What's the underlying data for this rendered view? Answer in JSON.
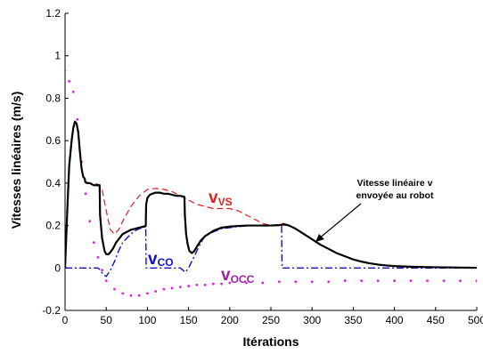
{
  "chart_data": {
    "type": "line",
    "xlabel": "Itérations",
    "ylabel": "Vitesses linéaires (m/s)",
    "xlim": [
      0,
      500
    ],
    "ylim": [
      -0.2,
      1.2
    ],
    "x_ticks": [
      0,
      50,
      100,
      150,
      200,
      250,
      300,
      350,
      400,
      450,
      500
    ],
    "y_ticks": [
      -0.2,
      0,
      0.2,
      0.4,
      0.6,
      0.8,
      1,
      1.2
    ],
    "x_tick_labels": [
      "0",
      "50",
      "100",
      "150",
      "200",
      "250",
      "300",
      "350",
      "400",
      "450",
      "500"
    ],
    "y_tick_labels": [
      "-0.2",
      "0",
      "0.2",
      "0.4",
      "0.6",
      "0.8",
      "1",
      "1.2"
    ],
    "grid": false,
    "colors": {
      "v": "#000000",
      "vvs": "#e0201c",
      "vco": "#1010c8",
      "vocc": "#e020e0"
    },
    "series": [
      {
        "key": "v",
        "style": "solid",
        "x": [
          0,
          3,
          5,
          8,
          10,
          12,
          14,
          16,
          18,
          20,
          22,
          24,
          24.5,
          27,
          30,
          35,
          40,
          42,
          42.5,
          45,
          48,
          50,
          53,
          55,
          58,
          62,
          66,
          70,
          75,
          80,
          85,
          90,
          95,
          98,
          98.5,
          100,
          103,
          106,
          110,
          115,
          120,
          125,
          130,
          135,
          140,
          145,
          145.5,
          147,
          149,
          151,
          154,
          157,
          160,
          165,
          170,
          180,
          190,
          200,
          210,
          220,
          230,
          240,
          250,
          260,
          266,
          272,
          280,
          290,
          300,
          310,
          320,
          330,
          340,
          350,
          360,
          370,
          380,
          390,
          400,
          420,
          440,
          460,
          480,
          500
        ],
        "y": [
          0,
          0.3,
          0.48,
          0.6,
          0.66,
          0.69,
          0.68,
          0.64,
          0.55,
          0.47,
          0.43,
          0.42,
          0.405,
          0.4,
          0.4,
          0.39,
          0.39,
          0.39,
          0.25,
          0.14,
          0.08,
          0.065,
          0.065,
          0.075,
          0.09,
          0.12,
          0.14,
          0.16,
          0.17,
          0.18,
          0.185,
          0.19,
          0.195,
          0.198,
          0.3,
          0.33,
          0.345,
          0.35,
          0.355,
          0.355,
          0.35,
          0.35,
          0.345,
          0.34,
          0.34,
          0.335,
          0.25,
          0.16,
          0.11,
          0.08,
          0.07,
          0.08,
          0.1,
          0.13,
          0.15,
          0.175,
          0.19,
          0.195,
          0.198,
          0.2,
          0.2,
          0.2,
          0.2,
          0.202,
          0.205,
          0.2,
          0.185,
          0.16,
          0.135,
          0.11,
          0.09,
          0.07,
          0.055,
          0.04,
          0.03,
          0.022,
          0.016,
          0.012,
          0.009,
          0.006,
          0.004,
          0.003,
          0.002,
          0.001
        ]
      },
      {
        "key": "vvs",
        "style": "dashed",
        "x": [
          25,
          30,
          40,
          45,
          50,
          55,
          60,
          65,
          70,
          80,
          90,
          100,
          110,
          120,
          130,
          140,
          150,
          160,
          170,
          180,
          190,
          200,
          210,
          220,
          230,
          240,
          250,
          260,
          265,
          270
        ],
        "y": [
          0.4,
          0.4,
          0.395,
          0.37,
          0.27,
          0.18,
          0.16,
          0.18,
          0.22,
          0.29,
          0.34,
          0.37,
          0.375,
          0.37,
          0.36,
          0.34,
          0.32,
          0.3,
          0.29,
          0.28,
          0.28,
          0.28,
          0.27,
          0.25,
          0.23,
          0.21,
          0.2,
          0.205,
          0.21,
          0.205
        ]
      },
      {
        "key": "vco",
        "style": "dashdot",
        "x": [
          0,
          40,
          43,
          46,
          50,
          55,
          60,
          65,
          70,
          75,
          80,
          85,
          90,
          95,
          98,
          98.5,
          100,
          140,
          143,
          146,
          150,
          155,
          160,
          165,
          170,
          180,
          190,
          200,
          210,
          220,
          230,
          240,
          250,
          260,
          263,
          263.5,
          265,
          300,
          350,
          400,
          450,
          500
        ],
        "y": [
          0,
          0,
          -0.01,
          -0.03,
          -0.04,
          -0.01,
          0.03,
          0.08,
          0.12,
          0.14,
          0.16,
          0.175,
          0.185,
          0.19,
          0.195,
          0,
          0,
          0,
          -0.01,
          -0.02,
          0,
          0.04,
          0.08,
          0.12,
          0.15,
          0.17,
          0.185,
          0.19,
          0.195,
          0.198,
          0.2,
          0.2,
          0.2,
          0.2,
          0.2,
          0,
          0,
          0,
          0,
          0,
          0,
          0
        ]
      },
      {
        "key": "vocc",
        "style": "dotted",
        "x": [
          0,
          5,
          10,
          15,
          20,
          25,
          30,
          35,
          40,
          45,
          50,
          60,
          70,
          80,
          90,
          100,
          110,
          120,
          130,
          140,
          150,
          160,
          170,
          180,
          190,
          200,
          220,
          240,
          260,
          280,
          300,
          320,
          340,
          360,
          380,
          400,
          420,
          440,
          460,
          480,
          500
        ],
        "y": [
          0.93,
          0.88,
          0.83,
          0.7,
          0.5,
          0.35,
          0.22,
          0.12,
          0.05,
          -0.01,
          -0.06,
          -0.1,
          -0.12,
          -0.13,
          -0.13,
          -0.12,
          -0.11,
          -0.1,
          -0.095,
          -0.09,
          -0.085,
          -0.08,
          -0.08,
          -0.075,
          -0.075,
          -0.07,
          -0.07,
          -0.07,
          -0.065,
          -0.065,
          -0.065,
          -0.065,
          -0.06,
          -0.06,
          -0.06,
          -0.06,
          -0.06,
          -0.06,
          -0.06,
          -0.06,
          -0.06
        ]
      }
    ],
    "series_labels": {
      "vvs": {
        "main": "v",
        "sub": "VS"
      },
      "vco": {
        "main": "v",
        "sub": "CO"
      },
      "vocc": {
        "main": "v",
        "sub": "OCC"
      }
    },
    "annotation": {
      "line1": "Vitesse linéaire v",
      "line2": "envoyée au robot"
    }
  }
}
